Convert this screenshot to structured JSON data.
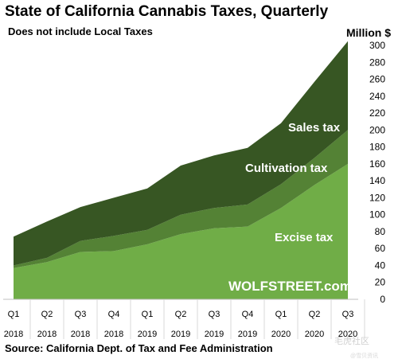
{
  "title": "State of California  Cannabis  Taxes,  Quarterly",
  "subtitle": "Does not include Local Taxes",
  "unit_label": "Million $",
  "source": "Source: California Dept. of Tax and Fee Administration",
  "watermark": "毛虎社区",
  "watermark_small": "@雪贝资讯",
  "chart_data": {
    "type": "area",
    "stacked": true,
    "categories": [
      "Q1 2018",
      "Q2 2018",
      "Q3 2018",
      "Q4 2018",
      "Q1 2019",
      "Q2 2019",
      "Q3 2019",
      "Q4 2019",
      "Q1 2020",
      "Q2 2020",
      "Q3 2020"
    ],
    "x_tick_quarters": [
      "Q1",
      "Q2",
      "Q3",
      "Q4",
      "Q1",
      "Q2",
      "Q3",
      "Q4",
      "Q1",
      "Q2",
      "Q3"
    ],
    "x_tick_years": [
      "2018",
      "2018",
      "2018",
      "2018",
      "2019",
      "2019",
      "2019",
      "2019",
      "2020",
      "2020",
      "2020"
    ],
    "series": [
      {
        "name": "Excise tax",
        "values": [
          37,
          44,
          56,
          57,
          65,
          77,
          84,
          86,
          108,
          135,
          160
        ]
      },
      {
        "name": "Cultivation tax",
        "values": [
          3,
          5,
          13,
          18,
          17,
          23,
          24,
          26,
          28,
          32,
          40
        ]
      },
      {
        "name": "Sales tax",
        "values": [
          34,
          43,
          40,
          45,
          49,
          58,
          62,
          67,
          72,
          90,
          105
        ]
      }
    ],
    "y_axis_side": "right",
    "ylim": [
      0,
      310
    ],
    "yticks": [
      0,
      20,
      40,
      60,
      80,
      100,
      120,
      140,
      160,
      180,
      200,
      220,
      240,
      260,
      280,
      300
    ],
    "colors": {
      "Excise tax": "#70ad47",
      "Cultivation tax": "#548235",
      "Sales tax": "#375623"
    },
    "brand_label": "WOLFSTREET.com",
    "grid": false
  }
}
